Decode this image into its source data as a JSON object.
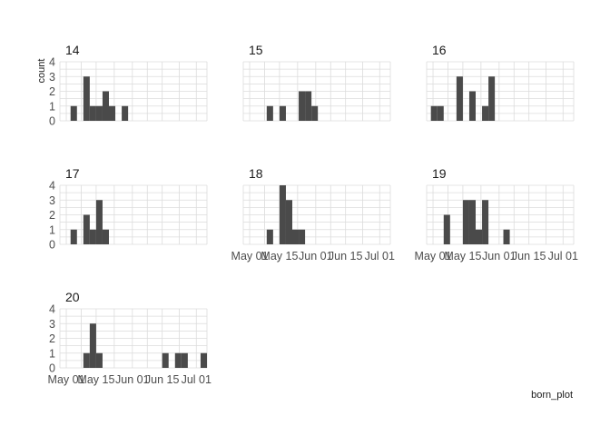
{
  "chart_data": {
    "type": "bar",
    "subtype": "faceted-histogram",
    "xlabel": "born_plot",
    "ylabel": "count",
    "ylim": [
      0,
      4
    ],
    "yticks": [
      0,
      1,
      2,
      3,
      4
    ],
    "xlim": [
      "2024-04-28",
      "2024-07-06"
    ],
    "xticks": [
      {
        "date": "2024-05-01",
        "label": "May 01"
      },
      {
        "date": "2024-05-15",
        "label": "May 15"
      },
      {
        "date": "2024-06-01",
        "label": "Jun 01"
      },
      {
        "date": "2024-06-15",
        "label": "Jun 15"
      },
      {
        "date": "2024-07-01",
        "label": "Jul 01"
      }
    ],
    "bin_days": 3,
    "grid": true,
    "bar_color": "#4a4a4a",
    "panels": [
      {
        "label": "14",
        "bins": [
          {
            "start": "2024-05-03",
            "count": 1
          },
          {
            "start": "2024-05-09",
            "count": 3
          },
          {
            "start": "2024-05-12",
            "count": 1
          },
          {
            "start": "2024-05-15",
            "count": 1
          },
          {
            "start": "2024-05-18",
            "count": 2
          },
          {
            "start": "2024-05-21",
            "count": 1
          },
          {
            "start": "2024-05-27",
            "count": 1
          }
        ]
      },
      {
        "label": "15",
        "bins": [
          {
            "start": "2024-05-09",
            "count": 1
          },
          {
            "start": "2024-05-15",
            "count": 1
          },
          {
            "start": "2024-05-24",
            "count": 2
          },
          {
            "start": "2024-05-27",
            "count": 2
          },
          {
            "start": "2024-05-30",
            "count": 1
          }
        ]
      },
      {
        "label": "16",
        "bins": [
          {
            "start": "2024-04-30",
            "count": 1
          },
          {
            "start": "2024-05-03",
            "count": 1
          },
          {
            "start": "2024-05-12",
            "count": 3
          },
          {
            "start": "2024-05-18",
            "count": 2
          },
          {
            "start": "2024-05-24",
            "count": 1
          },
          {
            "start": "2024-05-27",
            "count": 3
          }
        ]
      },
      {
        "label": "17",
        "bins": [
          {
            "start": "2024-05-03",
            "count": 1
          },
          {
            "start": "2024-05-09",
            "count": 2
          },
          {
            "start": "2024-05-12",
            "count": 1
          },
          {
            "start": "2024-05-15",
            "count": 3
          },
          {
            "start": "2024-05-18",
            "count": 1
          }
        ]
      },
      {
        "label": "18",
        "bins": [
          {
            "start": "2024-05-09",
            "count": 1
          },
          {
            "start": "2024-05-15",
            "count": 4
          },
          {
            "start": "2024-05-18",
            "count": 3
          },
          {
            "start": "2024-05-21",
            "count": 1
          },
          {
            "start": "2024-05-24",
            "count": 1
          }
        ]
      },
      {
        "label": "19",
        "bins": [
          {
            "start": "2024-05-06",
            "count": 2
          },
          {
            "start": "2024-05-15",
            "count": 3
          },
          {
            "start": "2024-05-18",
            "count": 3
          },
          {
            "start": "2024-05-21",
            "count": 1
          },
          {
            "start": "2024-05-24",
            "count": 3
          },
          {
            "start": "2024-06-03",
            "count": 1
          }
        ]
      },
      {
        "label": "20",
        "bins": [
          {
            "start": "2024-05-09",
            "count": 1
          },
          {
            "start": "2024-05-12",
            "count": 3
          },
          {
            "start": "2024-05-15",
            "count": 1
          },
          {
            "start": "2024-06-15",
            "count": 1
          },
          {
            "start": "2024-06-21",
            "count": 1
          },
          {
            "start": "2024-06-24",
            "count": 1
          },
          {
            "start": "2024-07-03",
            "count": 1
          }
        ]
      }
    ]
  }
}
